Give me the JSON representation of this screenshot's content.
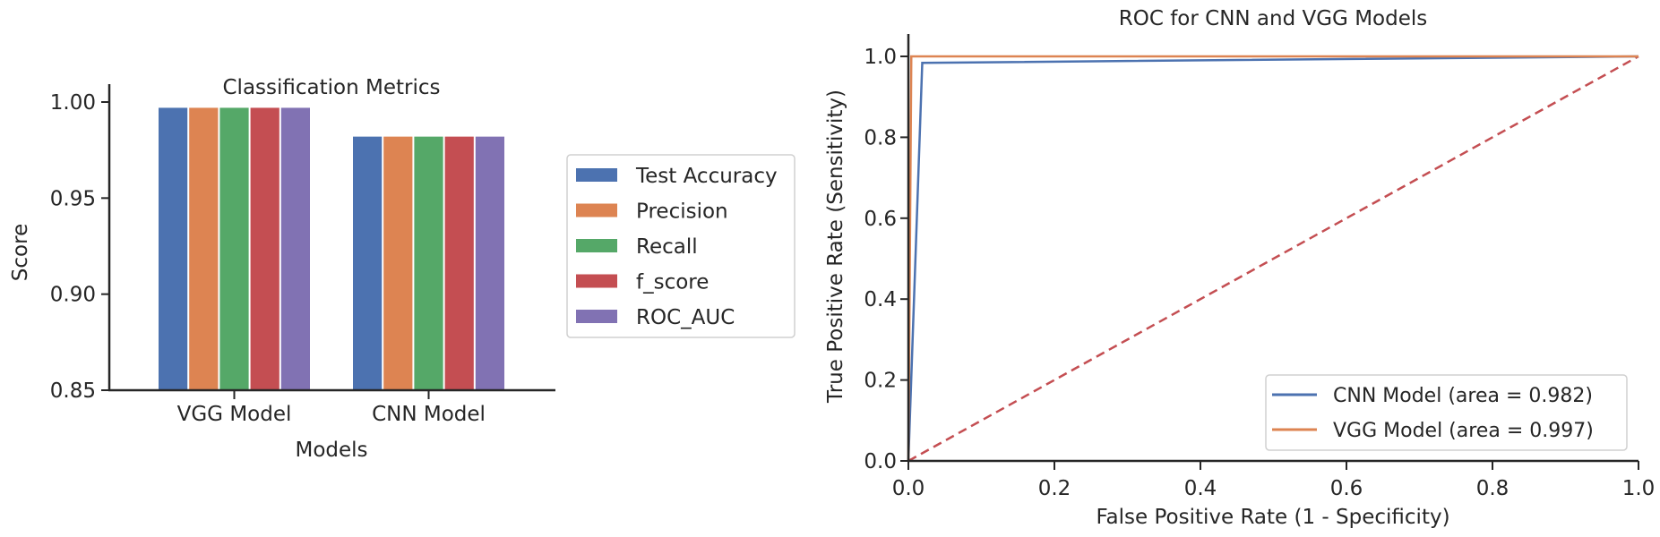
{
  "chart_data": [
    {
      "type": "bar",
      "title": "Classification Metrics",
      "xlabel": "Models",
      "ylabel": "Score",
      "ylim": [
        0.85,
        1.0
      ],
      "yticks": [
        "0.85",
        "0.90",
        "0.95",
        "1.00"
      ],
      "ytick_values": [
        0.85,
        0.9,
        0.95,
        1.0
      ],
      "categories": [
        "VGG Model",
        "CNN Model"
      ],
      "legend_position": "right-outside",
      "series": [
        {
          "name": "Test Accuracy",
          "color": "#4c72b0",
          "values": [
            0.997,
            0.982
          ]
        },
        {
          "name": "Precision",
          "color": "#dd8452",
          "values": [
            0.997,
            0.982
          ]
        },
        {
          "name": "Recall",
          "color": "#55a868",
          "values": [
            0.997,
            0.982
          ]
        },
        {
          "name": "f_score",
          "color": "#c44e52",
          "values": [
            0.997,
            0.982
          ]
        },
        {
          "name": "ROC_AUC",
          "color": "#8172b3",
          "values": [
            0.997,
            0.982
          ]
        }
      ]
    },
    {
      "type": "line",
      "title": "ROC for CNN and VGG Models",
      "xlabel": "False Positive Rate (1 - Specificity)",
      "ylabel": "True Positive Rate (Sensitivity)",
      "xlim": [
        0.0,
        1.0
      ],
      "ylim": [
        0.0,
        1.05
      ],
      "xticks": [
        "0.0",
        "0.2",
        "0.4",
        "0.6",
        "0.8",
        "1.0"
      ],
      "yticks": [
        "0.0",
        "0.2",
        "0.4",
        "0.6",
        "0.8",
        "1.0"
      ],
      "tick_values": [
        0.0,
        0.2,
        0.4,
        0.6,
        0.8,
        1.0
      ],
      "legend_position": "lower-right",
      "series": [
        {
          "name": "CNN Model (area = 0.982)",
          "color": "#4c72b0",
          "x": [
            0.0,
            0.019,
            1.0
          ],
          "y": [
            0.0,
            0.984,
            1.0
          ]
        },
        {
          "name": "VGG Model (area = 0.997)",
          "color": "#dd8452",
          "x": [
            0.0,
            0.004,
            1.0
          ],
          "y": [
            0.0,
            1.0,
            1.0
          ]
        }
      ],
      "reference_line": {
        "x": [
          0.0,
          1.0
        ],
        "y": [
          0.0,
          1.0
        ],
        "color": "#c44e52",
        "style": "dashed"
      }
    }
  ]
}
